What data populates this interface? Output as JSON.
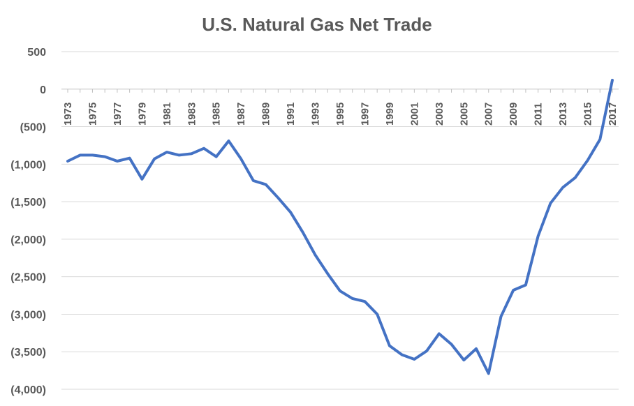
{
  "chart_data": {
    "type": "line",
    "title": "U.S. Natural Gas Net Trade",
    "xlabel": "",
    "ylabel": "",
    "ylim": [
      -4000,
      500
    ],
    "y_ticks": [
      500,
      0,
      -500,
      -1000,
      -1500,
      -2000,
      -2500,
      -3000,
      -3500,
      -4000
    ],
    "y_tick_labels": [
      "500",
      "0",
      "(500)",
      "(1,000)",
      "(1,500)",
      "(2,000)",
      "(2,500)",
      "(3,000)",
      "(3,500)",
      "(4,000)"
    ],
    "x_tick_labels": [
      "1973",
      "1975",
      "1977",
      "1979",
      "1981",
      "1983",
      "1985",
      "1987",
      "1989",
      "1991",
      "1993",
      "1995",
      "1997",
      "1999",
      "2001",
      "2003",
      "2005",
      "2007",
      "2009",
      "2011",
      "2013",
      "2015",
      "2017"
    ],
    "grid": true,
    "legend": "none",
    "colors": {
      "series": "#4472c4",
      "text": "#595959",
      "grid": "#d9d9d9"
    },
    "x": [
      1973,
      1974,
      1975,
      1976,
      1977,
      1978,
      1979,
      1980,
      1981,
      1982,
      1983,
      1984,
      1985,
      1986,
      1987,
      1988,
      1989,
      1990,
      1991,
      1992,
      1993,
      1994,
      1995,
      1996,
      1997,
      1998,
      1999,
      2000,
      2001,
      2002,
      2003,
      2004,
      2005,
      2006,
      2007,
      2008,
      2009,
      2010,
      2011,
      2012,
      2013,
      2014,
      2015,
      2016,
      2017
    ],
    "series": [
      {
        "values": [
          -960,
          -880,
          -880,
          -900,
          -960,
          -920,
          -1200,
          -930,
          -840,
          -880,
          -860,
          -790,
          -900,
          -690,
          -930,
          -1220,
          -1270,
          -1450,
          -1640,
          -1910,
          -2210,
          -2460,
          -2690,
          -2790,
          -2830,
          -3000,
          -3420,
          -3540,
          -3600,
          -3490,
          -3260,
          -3400,
          -3610,
          -3460,
          -3790,
          -3030,
          -2680,
          -2610,
          -1960,
          -1520,
          -1310,
          -1180,
          -950,
          -670,
          120
        ]
      }
    ]
  }
}
